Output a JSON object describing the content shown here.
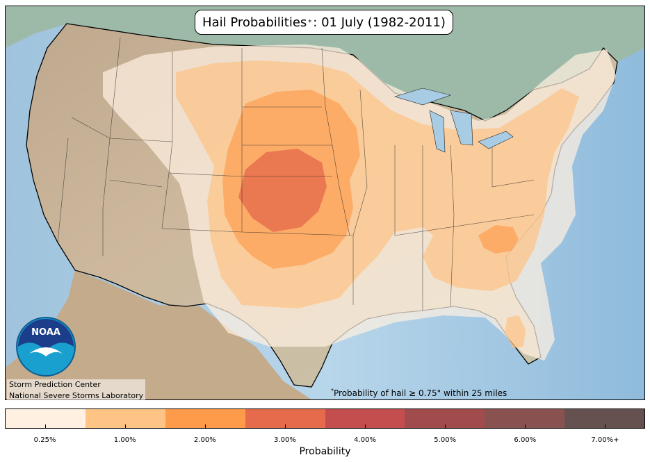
{
  "title": {
    "prefix": "Hail Probabilities",
    "marker": "*",
    "suffix": ": 01 July (1982-2011)"
  },
  "footnote": {
    "marker": "*",
    "text": "Probability of hail ≥ 0.75\" within 25 miles"
  },
  "credits": {
    "line1": "Storm Prediction Center",
    "line2": "National Severe Storms Laboratory"
  },
  "logo": {
    "text": "NOAA",
    "icon": "noaa-seagull-logo"
  },
  "colorbar": {
    "label": "Probability",
    "ticks": [
      "0.25%",
      "1.00%",
      "2.00%",
      "3.00%",
      "4.00%",
      "5.00%",
      "6.00%",
      "7.00%+"
    ],
    "colors": [
      "#fff0e1",
      "#fec486",
      "#fe9b4b",
      "#e56b4c",
      "#c44d4d",
      "#a24b4c",
      "#8a5151",
      "#655250"
    ]
  },
  "map_colors": {
    "ocean": "#a9cce5",
    "land": "#c8b49a",
    "canada": "#9bbcab",
    "mexico": "#c0a98a",
    "borders": "#000000"
  }
}
